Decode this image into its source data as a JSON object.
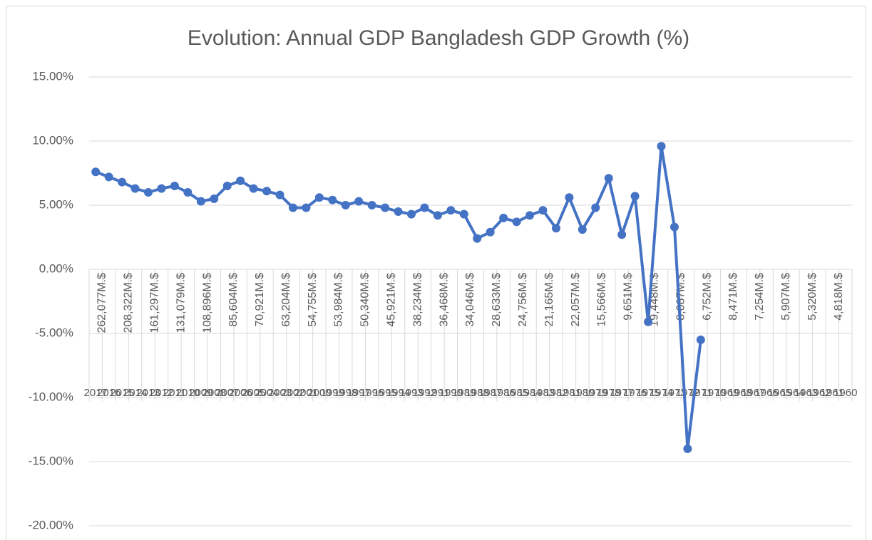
{
  "chart_data": {
    "type": "line",
    "title": "Evolution: Annual GDP Bangladesh GDP Growth (%)",
    "categories": [
      "2017",
      "2016",
      "2015",
      "2014",
      "2013",
      "2012",
      "2011",
      "2010",
      "2009",
      "2008",
      "2007",
      "2006",
      "2005",
      "2004",
      "2003",
      "2002",
      "2001",
      "2000",
      "1999",
      "1998",
      "1997",
      "1996",
      "1995",
      "1994",
      "1993",
      "1992",
      "1991",
      "1990",
      "1989",
      "1988",
      "1987",
      "1986",
      "1985",
      "1984",
      "1983",
      "1982",
      "1981",
      "1980",
      "1979",
      "1978",
      "1977",
      "1976",
      "1975",
      "1974",
      "1973",
      "1972",
      "1971",
      "1970",
      "1969",
      "1968",
      "1967",
      "1966",
      "1965",
      "1964",
      "1963",
      "1962",
      "1961",
      "1960"
    ],
    "gdp_labels": [
      "262,077M.$",
      null,
      "208,322M.$",
      null,
      "161,297M.$",
      null,
      "131,079M.$",
      null,
      "108,896M.$",
      null,
      "85,604M.$",
      null,
      "70,921M.$",
      null,
      "63,204M.$",
      null,
      "54,755M.$",
      null,
      "53,984M.$",
      null,
      "50,340M.$",
      null,
      "45,921M.$",
      null,
      "38,234M.$",
      null,
      "36,468M.$",
      null,
      "34,046M.$",
      null,
      "28,633M.$",
      null,
      "24,756M.$",
      null,
      "21,165M.$",
      null,
      "22,057M.$",
      null,
      "15,566M.$",
      null,
      "9,651M.$",
      null,
      "19,448M.$",
      null,
      "8,087M.$",
      null,
      "6,752M.$",
      null,
      "8,471M.$",
      null,
      "7,254M.$",
      null,
      "5,907M.$",
      null,
      "5,320M.$",
      null,
      "4,818M.$",
      null
    ],
    "series": [
      {
        "name": "GDP Growth",
        "color": "#4472c4",
        "values": [
          7.6,
          7.2,
          6.8,
          6.3,
          6.0,
          6.3,
          6.5,
          6.0,
          5.3,
          5.5,
          6.5,
          6.9,
          6.3,
          6.1,
          5.8,
          4.8,
          4.8,
          5.6,
          5.4,
          5.0,
          5.3,
          5.0,
          4.8,
          4.5,
          4.3,
          4.8,
          4.2,
          4.6,
          4.3,
          2.4,
          2.9,
          4.0,
          3.7,
          4.2,
          4.6,
          3.2,
          5.6,
          3.1,
          4.8,
          7.1,
          2.7,
          5.7,
          -4.1,
          9.6,
          3.3,
          -14.0,
          -5.5,
          null,
          null,
          null,
          null,
          null,
          null,
          null,
          null,
          null,
          null,
          null
        ]
      }
    ],
    "ylim": [
      -20,
      15
    ],
    "yticks": [
      {
        "value": -20,
        "label": "-20.00%"
      },
      {
        "value": -15,
        "label": "-15.00%"
      },
      {
        "value": -10,
        "label": "-10.00%"
      },
      {
        "value": -5,
        "label": "-5.00%"
      },
      {
        "value": 0,
        "label": "0.00%"
      },
      {
        "value": 5,
        "label": "5.00%"
      },
      {
        "value": 10,
        "label": "10.00%"
      },
      {
        "value": 15,
        "label": "15.00%"
      }
    ],
    "grid": true
  }
}
